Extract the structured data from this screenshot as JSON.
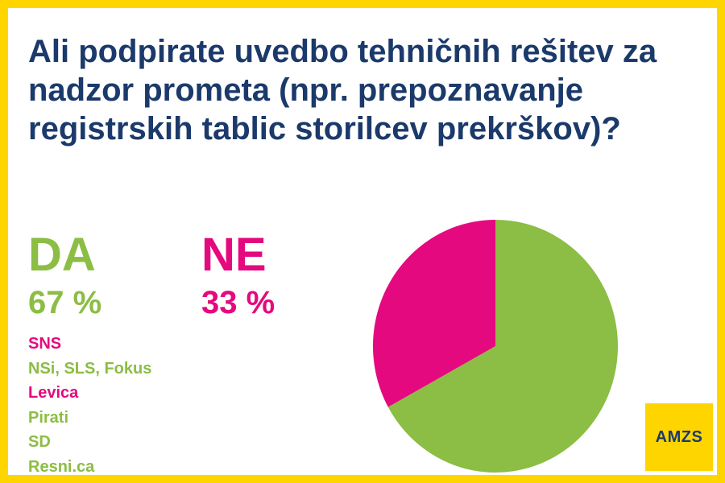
{
  "title": "Ali podpirate uvedbo tehničnih rešitev za nadzor prometa (npr. prepoznavanje registrskih tablic storilcev prekrškov)?",
  "logo_text": "AMZS",
  "colors": {
    "yes": "#8cbd44",
    "no": "#e5097f",
    "title": "#1b3a6b",
    "frame": "#ffd500",
    "logo_bg": "#ffd500"
  },
  "parties": [
    {
      "name": "SNS",
      "answer": "no"
    },
    {
      "name": "NSi, SLS, Fokus",
      "answer": "yes"
    },
    {
      "name": "Levica",
      "answer": "no"
    },
    {
      "name": "Pirati",
      "answer": "yes"
    },
    {
      "name": "SD",
      "answer": "yes"
    },
    {
      "name": "Resni.ca",
      "answer": "yes"
    }
  ],
  "chart_data": {
    "type": "pie",
    "categories": [
      "DA",
      "NE"
    ],
    "values": [
      67,
      33
    ],
    "value_labels": [
      "67 %",
      "33 %"
    ],
    "colors": [
      "#8cbd44",
      "#e5097f"
    ],
    "title": "Ali podpirate uvedbo tehničnih rešitev za nadzor prometa (npr. prepoznavanje registrskih tablic storilcev prekrškov)?"
  }
}
